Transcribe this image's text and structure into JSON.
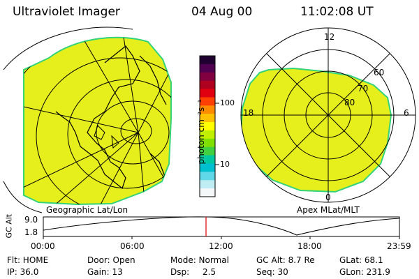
{
  "header": {
    "instrument": "Ultraviolet Imager",
    "date": "04 Aug 00",
    "time": "11:02:08 UT"
  },
  "colorbar": {
    "unit": "photon cm⁻²s⁻¹",
    "ticks": [
      "100",
      "10"
    ],
    "colors": [
      "#200030",
      "#500050",
      "#800040",
      "#b00020",
      "#e00010",
      "#ff4000",
      "#ff8c00",
      "#ffc000",
      "#ffff00",
      "#c0f000",
      "#80e000",
      "#40d040",
      "#00c8a0",
      "#00c0d0",
      "#60d8e8",
      "#c0ecf4",
      "#f4f8f8"
    ]
  },
  "left_map": {
    "label": "Geographic Lat/Lon",
    "fill_color": "#e6ef1c",
    "edge_color": "#33d37a"
  },
  "right_map": {
    "label": "Apex MLat/MLT",
    "fill_color": "#e6ef1c",
    "edge_color": "#33d37a",
    "mlt_labels": {
      "top": "12",
      "left": "18",
      "right": "6",
      "bottom": "0"
    },
    "lat_labels": [
      "60",
      "70",
      "80"
    ]
  },
  "altitude_plot": {
    "ylabel": "GC Alt",
    "y_ticks": [
      "9.0",
      "1.8"
    ],
    "x_ticks": [
      "00:00",
      "06:00",
      "12:00",
      "18:00",
      "23:59"
    ],
    "current_marker_color": "#dd0000"
  },
  "info": {
    "flt": "Flt: HOME",
    "door": "Door: Open",
    "mode": "Mode: Normal",
    "gc_alt": "GC Alt: 8.7 Re",
    "glat": "GLat: 68.1",
    "ip": "IP: 36.0",
    "gain": "Gain: 13",
    "dsp_label": "Dsp:",
    "dsp_value": "2.5",
    "seq": "Seq: 30",
    "glon": "GLon: 231.9"
  }
}
